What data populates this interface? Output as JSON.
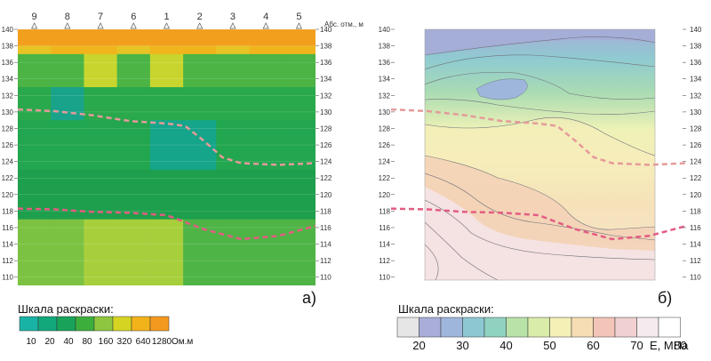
{
  "left_panel": {
    "elevation_axis_label": "Абс. отм., м",
    "panel_label": "а)",
    "borehole_labels": [
      "9",
      "8",
      "7",
      "6",
      "1",
      "2",
      "3",
      "4",
      "5"
    ],
    "scale_title": "Шкала раскраски:",
    "scale_ticks": [
      "10",
      "20",
      "40",
      "80",
      "160",
      "320",
      "640",
      "1280"
    ],
    "scale_unit": "Ом.м",
    "scale_colors": [
      "#19b3a5",
      "#12a87c",
      "#19a35a",
      "#3cae3c",
      "#8ec63f",
      "#d6d423",
      "#f2b21a",
      "#f39a1e"
    ]
  },
  "right_panel": {
    "panel_label": "б)",
    "scale_title": "Шкала раскраски:",
    "scale_ticks": [
      "20",
      "30",
      "40",
      "50",
      "60",
      "70",
      "80"
    ],
    "scale_unit": "E, МПа",
    "scale_colors": [
      "#e6e6e6",
      "#a8aed8",
      "#9fb6dc",
      "#8dc8d2",
      "#8fd2c0",
      "#b9e2a9",
      "#d9ecaa",
      "#f5f0b6",
      "#f7ddb3",
      "#f3c4b8",
      "#f0d0d0",
      "#f5eaee",
      "#ffffff"
    ]
  },
  "chart_data": [
    {
      "type": "heatmap",
      "title": "",
      "xlabel": "",
      "ylabel": "Абс. отм., м",
      "ylim": [
        109,
        140
      ],
      "y_ticks": [
        110,
        112,
        114,
        116,
        118,
        120,
        122,
        124,
        126,
        128,
        130,
        132,
        134,
        136,
        138,
        140
      ],
      "x_categories": [
        "9",
        "8",
        "7",
        "6",
        "1",
        "2",
        "3",
        "4",
        "5"
      ],
      "colorbar": {
        "values": [
          10,
          20,
          40,
          80,
          160,
          320,
          640,
          1280
        ],
        "unit": "Ом.м"
      },
      "horizons": [
        {
          "style": "dashed",
          "points": [
            [
              0,
              130.3
            ],
            [
              1,
              130.1
            ],
            [
              2,
              129.6
            ],
            [
              3,
              128.9
            ],
            [
              4,
              128.6
            ],
            [
              4.5,
              128.3
            ],
            [
              5,
              126.5
            ],
            [
              5.5,
              124.5
            ],
            [
              6,
              123.8
            ],
            [
              7,
              123.6
            ],
            [
              8,
              123.8
            ]
          ]
        },
        {
          "style": "dashed",
          "points": [
            [
              0,
              118.3
            ],
            [
              1,
              118.2
            ],
            [
              2,
              117.9
            ],
            [
              3,
              117.8
            ],
            [
              4,
              117.5
            ],
            [
              5,
              115.8
            ],
            [
              6,
              114.6
            ],
            [
              7,
              115.0
            ],
            [
              8,
              116.2
            ]
          ]
        }
      ]
    },
    {
      "type": "heatmap",
      "title": "",
      "xlabel": "",
      "ylabel": "",
      "ylim": [
        109,
        140
      ],
      "y_ticks": [
        110,
        112,
        114,
        116,
        118,
        120,
        122,
        124,
        126,
        128,
        130,
        132,
        134,
        136,
        138,
        140
      ],
      "colorbar": {
        "values": [
          20,
          30,
          40,
          50,
          60,
          70,
          80
        ],
        "unit": "E, МПа"
      },
      "horizons": [
        {
          "style": "dashed",
          "points": [
            [
              0,
              130.3
            ],
            [
              1,
              130.1
            ],
            [
              2,
              129.6
            ],
            [
              3,
              128.9
            ],
            [
              4,
              128.6
            ],
            [
              4.5,
              128.3
            ],
            [
              5,
              126.5
            ],
            [
              5.5,
              124.5
            ],
            [
              6,
              123.8
            ],
            [
              7,
              123.6
            ],
            [
              8,
              123.8
            ]
          ]
        },
        {
          "style": "dashed",
          "points": [
            [
              0,
              118.3
            ],
            [
              1,
              118.2
            ],
            [
              2,
              117.9
            ],
            [
              3,
              117.8
            ],
            [
              4,
              117.5
            ],
            [
              5,
              115.8
            ],
            [
              6,
              114.6
            ],
            [
              7,
              115.0
            ],
            [
              8,
              116.2
            ]
          ]
        }
      ]
    }
  ]
}
